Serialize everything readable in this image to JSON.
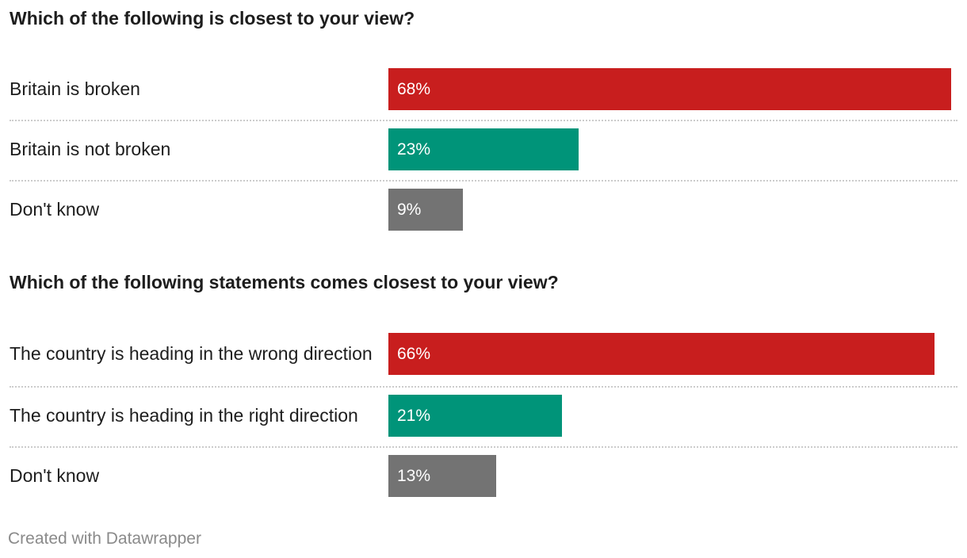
{
  "footer": "Created with Datawrapper",
  "colors": {
    "negative": "#c81e1e",
    "positive": "#009479",
    "neutral": "#737373"
  },
  "chart_data": [
    {
      "type": "bar",
      "orientation": "horizontal",
      "title": "Which of the following is closest to your view?",
      "categories": [
        "Britain is broken",
        "Britain is not broken",
        "Don't know"
      ],
      "values": [
        68,
        23,
        9
      ],
      "value_labels": [
        "68%",
        "23%",
        "9%"
      ],
      "colors": [
        "#c81e1e",
        "#009479",
        "#737373"
      ],
      "xlim": [
        0,
        68
      ],
      "grid": false
    },
    {
      "type": "bar",
      "orientation": "horizontal",
      "title": "Which of the following statements comes closest to your view?",
      "categories": [
        "The country is heading in the wrong direction",
        "The country is heading in the right direction",
        "Don't know"
      ],
      "values": [
        66,
        21,
        13
      ],
      "value_labels": [
        "66%",
        "21%",
        "13%"
      ],
      "colors": [
        "#c81e1e",
        "#009479",
        "#737373"
      ],
      "xlim": [
        0,
        68
      ],
      "grid": false
    }
  ]
}
